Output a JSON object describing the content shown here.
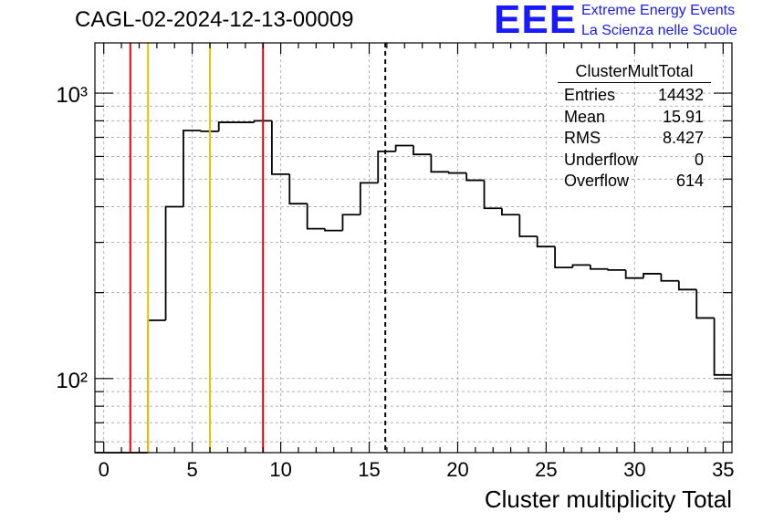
{
  "title": "CAGL-02-2024-12-13-00009",
  "logo": {
    "mark": "EEE",
    "line1": "Extreme Energy Events",
    "line2": "La Scienza nelle Scuole",
    "color": "#1a1aff"
  },
  "stats_box": {
    "name": "ClusterMultTotal",
    "rows": [
      {
        "label": "Entries",
        "value": "14432"
      },
      {
        "label": "Mean",
        "value": "15.91"
      },
      {
        "label": "RMS",
        "value": "8.427"
      },
      {
        "label": "Underflow",
        "value": "0"
      },
      {
        "label": "Overflow",
        "value": "614"
      }
    ]
  },
  "chart_data": {
    "type": "histogram",
    "xlabel": "Cluster multiplicity Total",
    "ylabel": "",
    "xlim": [
      -0.5,
      35.5
    ],
    "ylim": [
      55,
      1500
    ],
    "yscale": "log",
    "grid": true,
    "x_ticks": [
      0,
      5,
      10,
      15,
      20,
      25,
      30,
      35
    ],
    "x_tick_labels": [
      "0",
      "5",
      "10",
      "15",
      "20",
      "25",
      "30",
      "35"
    ],
    "y_ticks": [
      100,
      1000
    ],
    "y_tick_labels": [
      "10²",
      "10³"
    ],
    "bin_edges": [
      -0.5,
      0.5,
      1.5,
      2.5,
      3.5,
      4.5,
      5.5,
      6.5,
      7.5,
      8.5,
      9.5,
      10.5,
      11.5,
      12.5,
      13.5,
      14.5,
      15.5,
      16.5,
      17.5,
      18.5,
      19.5,
      20.5,
      21.5,
      22.5,
      23.5,
      24.5,
      25.5,
      26.5,
      27.5,
      28.5,
      29.5,
      30.5,
      31.5,
      32.5,
      33.5,
      34.5,
      35.5
    ],
    "counts": [
      0,
      0,
      0,
      160,
      400,
      740,
      735,
      790,
      790,
      800,
      520,
      410,
      335,
      330,
      375,
      485,
      625,
      655,
      610,
      530,
      525,
      495,
      395,
      375,
      315,
      290,
      245,
      250,
      242,
      240,
      225,
      233,
      220,
      205,
      163,
      103
    ],
    "vertical_lines": [
      {
        "x": 1.5,
        "color": "#e8000b",
        "style": "solid"
      },
      {
        "x": 2.5,
        "color": "#f0c000",
        "style": "solid"
      },
      {
        "x": 6.0,
        "color": "#f0c000",
        "style": "solid"
      },
      {
        "x": 9.0,
        "color": "#e8000b",
        "style": "solid"
      },
      {
        "x": 15.91,
        "color": "#000000",
        "style": "dashed"
      }
    ]
  }
}
